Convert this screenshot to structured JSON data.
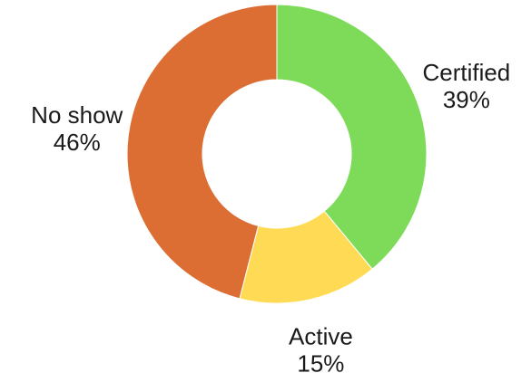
{
  "chart_data": {
    "type": "pie",
    "variant": "donut",
    "title": "",
    "start_angle_deg": 0,
    "direction": "clockwise",
    "legend": "none",
    "slices": [
      {
        "label": "Certified",
        "value": 39,
        "value_label": "39%",
        "color": "#7edb5a"
      },
      {
        "label": "Active",
        "value": 15,
        "value_label": "15%",
        "color": "#ffda55"
      },
      {
        "label": "No show",
        "value": 46,
        "value_label": "46%",
        "color": "#dc6e34"
      }
    ]
  }
}
